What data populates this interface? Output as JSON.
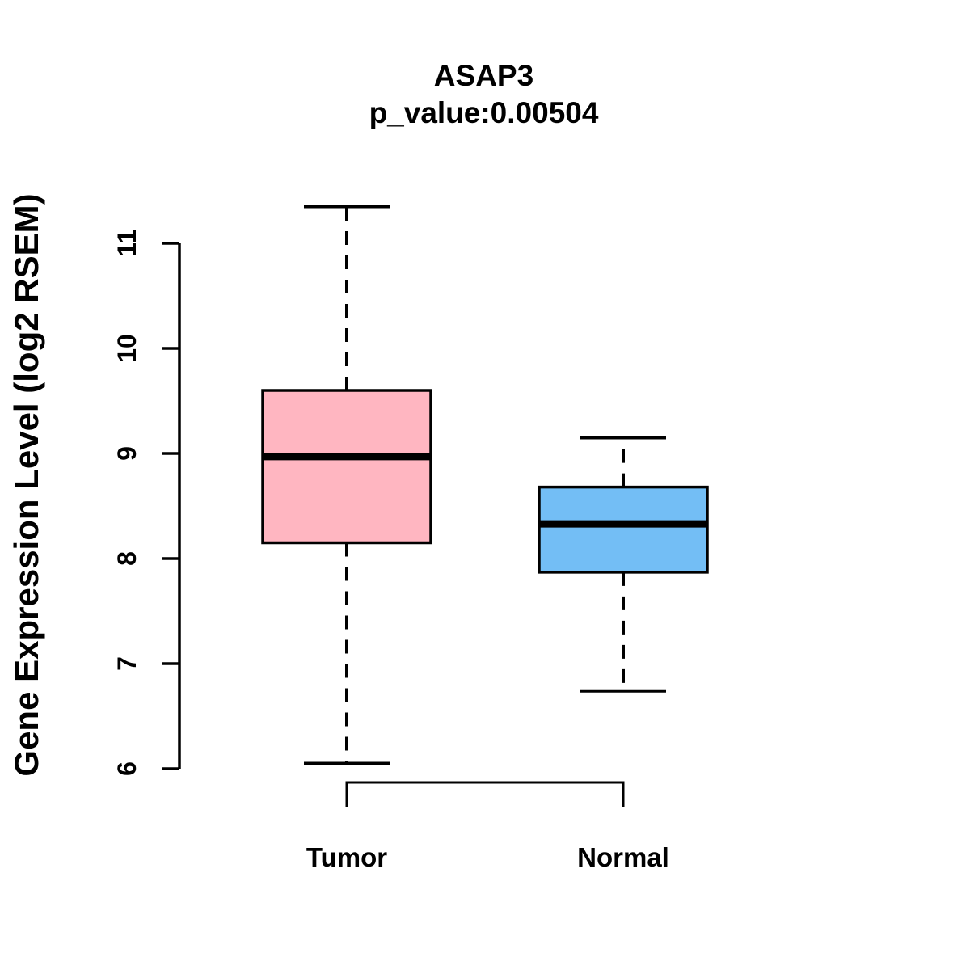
{
  "chart_data": {
    "type": "boxplot",
    "title": "ASAP3",
    "subtitle": "p_value:0.00504",
    "ylabel": "Gene Expression Level (log2 RSEM)",
    "xlabel": "",
    "axis_range": [
      6,
      11
    ],
    "yticks": [
      6,
      7,
      8,
      9,
      10,
      11
    ],
    "grid": "off",
    "legend": "none",
    "groups": [
      {
        "label": "Tumor",
        "color": "#FFB6C1",
        "whisker_low": 6.05,
        "q1": 8.15,
        "median": 8.97,
        "q3": 9.6,
        "whisker_high": 11.35
      },
      {
        "label": "Normal",
        "color": "#73BEF5",
        "whisker_low": 6.74,
        "q1": 7.87,
        "median": 8.33,
        "q3": 8.68,
        "whisker_high": 9.15
      }
    ],
    "colors": {
      "stroke": "#000000",
      "background": "#ffffff"
    }
  }
}
